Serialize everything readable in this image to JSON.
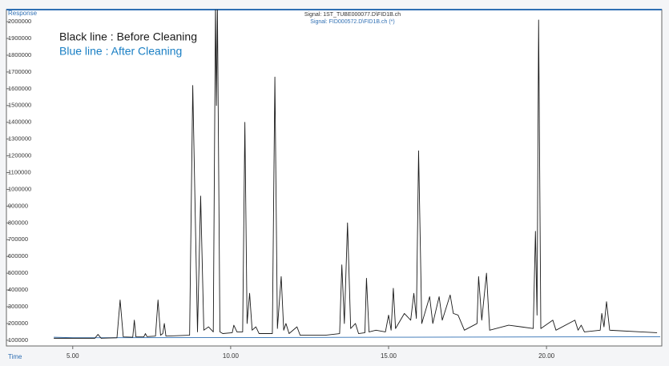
{
  "chart_data": {
    "type": "line",
    "title": "Signal: 1ST_TUBE000077.D\\FID1B.ch",
    "subtitle": "Signal: FID000572.D\\FID1B.ch (*)",
    "y_label": "Response",
    "x_label": "Time",
    "annotations": [
      "Black line : Before Cleaning",
      "Blue line : After Cleaning"
    ],
    "xlim": [
      2.9,
      23.65
    ],
    "ylim": [
      66000,
      2072000
    ],
    "xticks": [
      {
        "value": 5,
        "label": "5.00"
      },
      {
        "value": 10,
        "label": "10.00"
      },
      {
        "value": 15,
        "label": "15.00"
      },
      {
        "value": 20,
        "label": "20.00"
      }
    ],
    "yticks": [
      100000,
      200000,
      300000,
      400000,
      500000,
      600000,
      700000,
      800000,
      900000,
      1000000,
      1100000,
      1200000,
      1300000,
      1400000,
      1500000,
      1600000,
      1700000,
      1800000,
      1900000,
      2000000
    ],
    "grid": false,
    "series": [
      {
        "name": "Signal: 1ST_TUBE000077.D\\FID1B.ch",
        "color": "#1a1a1a",
        "x": [
          4.4,
          5.7,
          5.8,
          5.9,
          6.4,
          6.5,
          6.6,
          6.9,
          6.95,
          7.0,
          7.25,
          7.3,
          7.35,
          7.62,
          7.7,
          7.78,
          7.85,
          7.9,
          7.95,
          8.7,
          8.8,
          8.95,
          9.05,
          9.15,
          9.3,
          9.45,
          9.52,
          9.55,
          9.58,
          9.66,
          9.75,
          10.05,
          10.1,
          10.2,
          10.38,
          10.45,
          10.52,
          10.6,
          10.68,
          10.8,
          10.9,
          11.32,
          11.4,
          11.48,
          11.6,
          11.68,
          11.75,
          11.85,
          12.1,
          12.2,
          13.0,
          13.45,
          13.52,
          13.6,
          13.7,
          13.8,
          13.95,
          14.05,
          14.25,
          14.3,
          14.38,
          14.6,
          14.9,
          15.0,
          15.08,
          15.15,
          15.22,
          15.5,
          15.7,
          15.8,
          15.88,
          15.95,
          16.05,
          16.3,
          16.4,
          16.6,
          16.7,
          16.95,
          17.05,
          17.2,
          17.4,
          17.8,
          17.85,
          17.95,
          18.1,
          18.2,
          18.8,
          19.2,
          19.58,
          19.65,
          19.7,
          19.75,
          19.82,
          20.2,
          20.3,
          20.9,
          21.0,
          21.1,
          21.2,
          21.7,
          21.75,
          21.82,
          21.9,
          22.0,
          23.0,
          23.5
        ],
        "values": [
          112000,
          112000,
          135000,
          112000,
          115000,
          340000,
          120000,
          118000,
          220000,
          120000,
          120000,
          140000,
          122000,
          125000,
          340000,
          130000,
          140000,
          200000,
          125000,
          130000,
          1620000,
          150000,
          960000,
          160000,
          180000,
          150000,
          2100000,
          1500000,
          2100000,
          150000,
          140000,
          145000,
          190000,
          150000,
          150000,
          1400000,
          200000,
          380000,
          160000,
          180000,
          140000,
          140000,
          1670000,
          170000,
          480000,
          160000,
          200000,
          140000,
          180000,
          130000,
          130000,
          140000,
          550000,
          200000,
          800000,
          170000,
          200000,
          140000,
          145000,
          470000,
          150000,
          160000,
          150000,
          250000,
          160000,
          410000,
          170000,
          260000,
          220000,
          380000,
          230000,
          1230000,
          200000,
          360000,
          200000,
          360000,
          220000,
          370000,
          260000,
          250000,
          160000,
          200000,
          480000,
          220000,
          500000,
          160000,
          190000,
          180000,
          170000,
          750000,
          250000,
          2010000,
          170000,
          220000,
          160000,
          220000,
          160000,
          190000,
          150000,
          160000,
          260000,
          180000,
          330000,
          160000,
          150000,
          145000
        ]
      },
      {
        "name": "Signal: FID000572.D\\FID1B.ch (*)",
        "color": "#2f6fb3",
        "x": [
          4.4,
          5.0,
          10.0,
          15.0,
          20.0,
          23.6
        ],
        "values": [
          118000,
          115000,
          116000,
          118000,
          120000,
          121000
        ]
      }
    ]
  }
}
